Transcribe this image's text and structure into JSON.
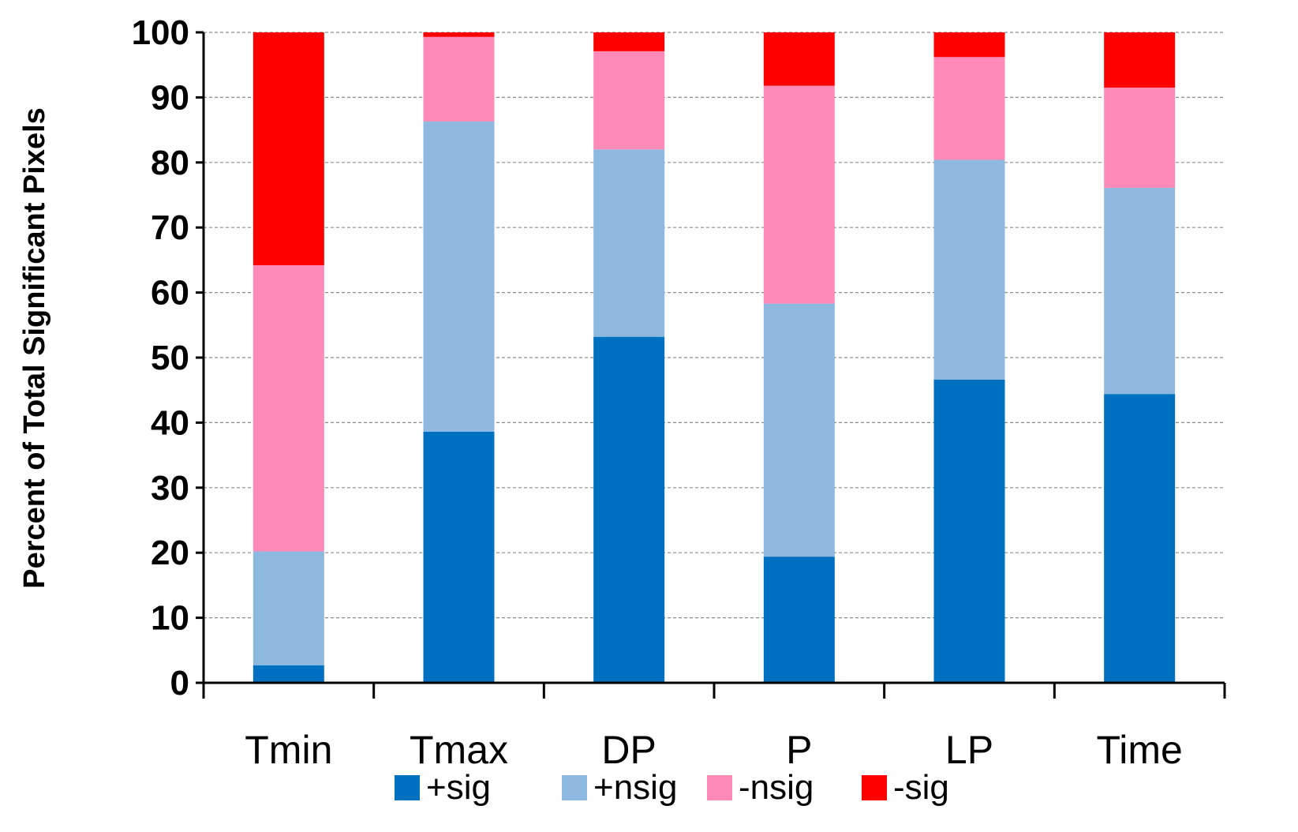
{
  "chart_data": {
    "type": "bar",
    "stacked": true,
    "title": "",
    "xlabel": "",
    "ylabel": "Percent of Total Significant Pixels",
    "ylim": [
      0,
      100
    ],
    "yticks": [
      0,
      10,
      20,
      30,
      40,
      50,
      60,
      70,
      80,
      90,
      100
    ],
    "grid": true,
    "legend_position": "bottom",
    "categories": [
      "Tmin",
      "Tmax",
      "DP",
      "P",
      "LP",
      "Time"
    ],
    "series": [
      {
        "name": "+sig",
        "color": "#0070C0",
        "values": [
          2.7,
          38.6,
          53.2,
          19.4,
          46.6,
          44.4
        ]
      },
      {
        "name": "+nsig",
        "color": "#8DB8E0",
        "values": [
          17.5,
          47.7,
          28.8,
          38.9,
          33.8,
          31.7
        ]
      },
      {
        "name": "-nsig",
        "color": "#FF8AB7",
        "values": [
          44.0,
          13.0,
          15.1,
          33.5,
          15.8,
          15.4
        ]
      },
      {
        "name": "-sig",
        "color": "#FF0000",
        "values": [
          35.8,
          0.7,
          2.9,
          8.2,
          3.8,
          8.5
        ]
      }
    ]
  }
}
